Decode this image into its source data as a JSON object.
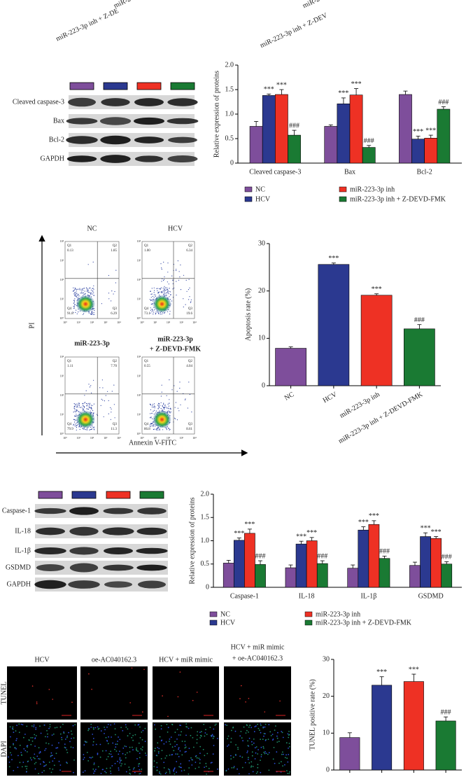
{
  "cropped_labels": [
    "miR-2",
    "miR-223-3p inh + Z-DE",
    "miR-2",
    "miR-223-3p inh + Z-DEV"
  ],
  "blot_b": {
    "rows": [
      "Cleaved caspase-3",
      "Bax",
      "Bcl-2",
      "GAPDH"
    ]
  },
  "flow": {
    "y_label": "PI",
    "x_label": "Annexin V-FITC",
    "ticks": [
      "10⁰",
      "10¹",
      "10²",
      "10³",
      "10⁴"
    ],
    "panels": [
      {
        "title": [
          "NC"
        ],
        "quadrants": [
          {
            "name": "Q1",
            "value": "0.13"
          },
          {
            "name": "Q2",
            "value": "1.85"
          },
          {
            "name": "Q3",
            "value": "6.29"
          },
          {
            "name": "Q4",
            "value": "91.8"
          }
        ]
      },
      {
        "title": [
          "HCV"
        ],
        "quadrants": [
          {
            "name": "Q1",
            "value": "1.00"
          },
          {
            "name": "Q2",
            "value": "6.34"
          },
          {
            "name": "Q3",
            "value": "19.6"
          },
          {
            "name": "Q4",
            "value": "73.1"
          }
        ]
      },
      {
        "title": [
          "miR-223-3p"
        ],
        "quadrants": [
          {
            "name": "Q1",
            "value": "1.11"
          },
          {
            "name": "Q2",
            "value": "7.70"
          },
          {
            "name": "Q3",
            "value": "11.3"
          },
          {
            "name": "Q4",
            "value": "79.9"
          }
        ]
      },
      {
        "title": [
          "miR-223-3p",
          "+ Z-DEVD-FMK"
        ],
        "quadrants": [
          {
            "name": "Q1",
            "value": "0.55"
          },
          {
            "name": "Q2",
            "value": "4.04"
          },
          {
            "name": "Q3",
            "value": "8.61"
          },
          {
            "name": "Q4",
            "value": "86.8"
          }
        ]
      }
    ]
  },
  "blot_d": {
    "rows": [
      "Caspase-1",
      "IL-18",
      "IL-1β",
      "GSDMD",
      "GAPDH"
    ]
  },
  "tunel": {
    "columns": [
      [
        "HCV"
      ],
      [
        "oe-AC040162.3"
      ],
      [
        "HCV + miR mimic"
      ],
      [
        "HCV + miR mimic",
        "+ oe-AC040162.3"
      ]
    ],
    "rows": [
      "TUNEL",
      "DAPI"
    ]
  },
  "chart_data": [
    {
      "type": "grouped_bar",
      "ylabel": "Relative expression of proteins",
      "categories": [
        "Cleaved caspase-3",
        "Bax",
        "Bcl-2"
      ],
      "series": [
        {
          "name": "NC",
          "color": "#7e4e9b",
          "values": [
            0.75,
            0.75,
            1.4
          ],
          "errors": [
            0.1,
            0.03,
            0.07
          ]
        },
        {
          "name": "HCV",
          "color": "#2b3990",
          "values": [
            1.38,
            1.21,
            0.49
          ],
          "errors": [
            0.03,
            0.12,
            0.06
          ],
          "significance": [
            "***",
            "***",
            "***"
          ]
        },
        {
          "name": "miR-223-3p inh",
          "color": "#ee3124",
          "values": [
            1.4,
            1.39,
            0.51
          ],
          "errors": [
            0.1,
            0.13,
            0.06
          ],
          "significance": [
            "***",
            "***",
            "***"
          ]
        },
        {
          "name": "miR-223-3p inh + Z-DEVD-FMK",
          "color": "#1a7a33",
          "values": [
            0.57,
            0.32,
            1.1
          ],
          "errors": [
            0.1,
            0.04,
            0.05
          ],
          "significance": [
            "###",
            "###",
            "###"
          ]
        }
      ],
      "ylim": [
        0,
        2
      ],
      "yticks": [
        0,
        0.5,
        {
          "value": 1,
          "label": "1.0"
        },
        1.5,
        {
          "value": 2,
          "label": "2.0"
        }
      ],
      "legend": "bottom"
    },
    {
      "type": "bar",
      "ylabel": "Apoptosis rate (%)",
      "categories": [
        "NC",
        "HCV",
        "miR-223-3p inh",
        "miR-223-3p inh + Z-DEVD-FMK"
      ],
      "values": [
        7.9,
        25.6,
        19.1,
        12.0
      ],
      "errors": [
        0.3,
        0.3,
        0.3,
        0.9
      ],
      "colors": [
        "#7e4e9b",
        "#2b3990",
        "#ee3124",
        "#1a7a33"
      ],
      "significance": [
        null,
        "***",
        "***",
        "###"
      ],
      "ylim": [
        0,
        30
      ],
      "yticks": [
        0,
        10,
        20,
        30
      ]
    },
    {
      "type": "grouped_bar",
      "ylabel": "Relative expression of proteins",
      "categories": [
        "Caspase-1",
        "IL-18",
        "IL-1β",
        "GSDMD"
      ],
      "series": [
        {
          "name": "NC",
          "color": "#7e4e9b",
          "values": [
            0.52,
            0.42,
            0.41,
            0.47
          ],
          "errors": [
            0.06,
            0.06,
            0.07,
            0.07
          ]
        },
        {
          "name": "HCV",
          "color": "#2b3990",
          "values": [
            1.01,
            0.93,
            1.23,
            1.09
          ],
          "errors": [
            0.05,
            0.06,
            0.07,
            0.08
          ],
          "significance": [
            "***",
            "***",
            "***",
            "***"
          ]
        },
        {
          "name": "miR-223-3p inh",
          "color": "#ee3124",
          "values": [
            1.16,
            1.0,
            1.35,
            1.05
          ],
          "errors": [
            0.09,
            0.07,
            0.08,
            0.04
          ],
          "significance": [
            "***",
            "***",
            "***",
            "***"
          ]
        },
        {
          "name": "miR-223-3p inh + Z-DEVD-FMK",
          "color": "#1a7a33",
          "values": [
            0.49,
            0.51,
            0.62,
            0.5
          ],
          "errors": [
            0.08,
            0.06,
            0.05,
            0.05
          ],
          "significance": [
            "###",
            "###",
            "###",
            "###"
          ]
        }
      ],
      "ylim": [
        0,
        2
      ],
      "yticks": [
        0,
        0.5,
        {
          "value": 1,
          "label": "1.0"
        },
        1.5,
        {
          "value": 2,
          "label": "2.0"
        }
      ],
      "legend": "bottom"
    },
    {
      "type": "bar",
      "ylabel": "TUNEL positive rate (%)",
      "categories": [
        null,
        null,
        null,
        null
      ],
      "values": [
        8.8,
        23.0,
        24.0,
        13.3
      ],
      "errors": [
        1.3,
        2.3,
        2.0,
        1.1
      ],
      "colors": [
        "#7e4e9b",
        "#2b3990",
        "#ee3124",
        "#1a7a33"
      ],
      "significance": [
        null,
        "***",
        "***",
        "###"
      ],
      "ylim": [
        0,
        30
      ],
      "yticks": [
        0,
        10,
        20,
        30
      ]
    }
  ]
}
